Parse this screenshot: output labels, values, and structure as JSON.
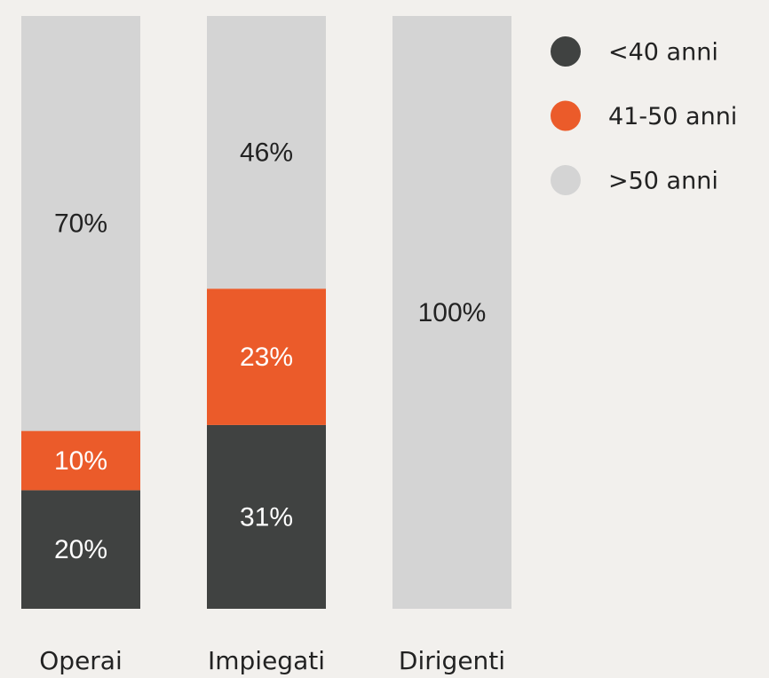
{
  "chart_data": {
    "type": "bar",
    "stacked": true,
    "categories": [
      "Operai",
      "Impiegati",
      "Dirigenti"
    ],
    "series": [
      {
        "name": "<40 anni",
        "color": "#404241",
        "values": [
          20,
          31,
          0
        ],
        "value_labels": [
          "20%",
          "31%",
          null
        ]
      },
      {
        "name": "41-50 anni",
        "color": "#eb5b2a",
        "values": [
          10,
          23,
          0
        ],
        "value_labels": [
          "10%",
          "23%",
          null
        ]
      },
      {
        "name": ">50 anni",
        "color": "#d4d4d4",
        "values": [
          70,
          46,
          100
        ],
        "value_labels": [
          "70%",
          "46%",
          "100%"
        ]
      }
    ],
    "legend": "top-right"
  }
}
